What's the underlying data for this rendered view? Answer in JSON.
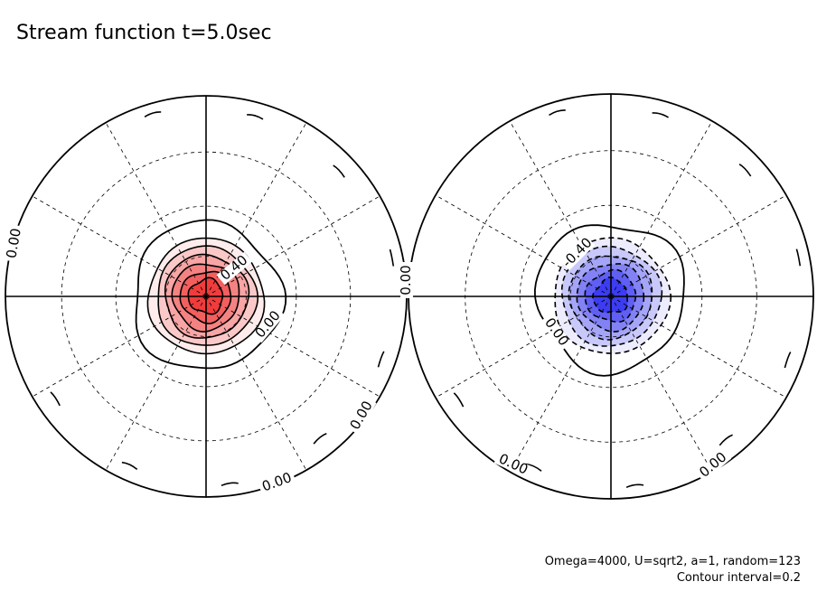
{
  "title": "Stream function t=5.0sec",
  "footnote": {
    "params": "Omega=4000, U=sqrt2, a=1, random=123",
    "interval": "Contour interval=0.2"
  },
  "colors": {
    "positive": "#f03c3c",
    "negative": "#3c3cf0",
    "line": "#000000",
    "background": "#ffffff"
  },
  "chart_data": {
    "type": "contour",
    "projection": "polar stereographic, two hemispheres",
    "time": "t=5.0sec",
    "contour_interval": 0.2,
    "grid": true,
    "panels": [
      {
        "name": "left",
        "sign": "positive",
        "peak_value": 1.4,
        "filled_levels": [
          0.2,
          0.4,
          0.6,
          0.8,
          1.0,
          1.2
        ],
        "labels": [
          "0.40",
          "0.00",
          "0.00",
          "0.00",
          "0.00"
        ]
      },
      {
        "name": "right",
        "sign": "negative",
        "peak_value": -1.4,
        "filled_levels": [
          -0.2,
          -0.4,
          -0.6,
          -0.8,
          -1.0,
          -1.2
        ],
        "labels": [
          "-0.40",
          "0.00",
          "0.00",
          "0.00",
          "0.00"
        ]
      }
    ]
  }
}
